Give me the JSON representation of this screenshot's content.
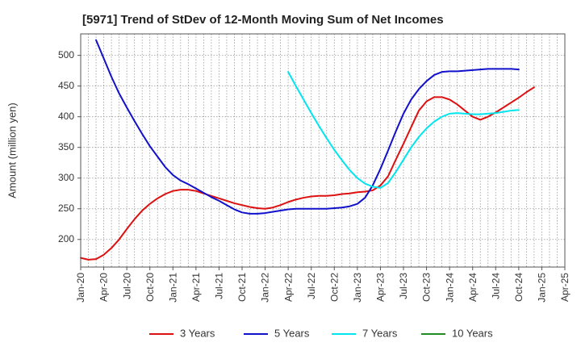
{
  "chart_data": {
    "type": "line",
    "title": "[5971]  Trend of StDev of 12-Month Moving Sum of Net Incomes",
    "xlabel": "",
    "ylabel": "Amount (million yen)",
    "ylim": [
      155,
      535
    ],
    "yticks": [
      200,
      250,
      300,
      350,
      400,
      450,
      500
    ],
    "xlim": [
      0,
      63
    ],
    "xticks": [
      {
        "m": 0,
        "label": "Jan-20"
      },
      {
        "m": 3,
        "label": "Apr-20"
      },
      {
        "m": 6,
        "label": "Jul-20"
      },
      {
        "m": 9,
        "label": "Oct-20"
      },
      {
        "m": 12,
        "label": "Jan-21"
      },
      {
        "m": 15,
        "label": "Apr-21"
      },
      {
        "m": 18,
        "label": "Jul-21"
      },
      {
        "m": 21,
        "label": "Oct-21"
      },
      {
        "m": 24,
        "label": "Jan-22"
      },
      {
        "m": 27,
        "label": "Apr-22"
      },
      {
        "m": 30,
        "label": "Jul-22"
      },
      {
        "m": 33,
        "label": "Oct-22"
      },
      {
        "m": 36,
        "label": "Jan-23"
      },
      {
        "m": 39,
        "label": "Apr-23"
      },
      {
        "m": 42,
        "label": "Jul-23"
      },
      {
        "m": 45,
        "label": "Oct-23"
      },
      {
        "m": 48,
        "label": "Jan-24"
      },
      {
        "m": 51,
        "label": "Apr-24"
      },
      {
        "m": 54,
        "label": "Jul-24"
      },
      {
        "m": 57,
        "label": "Oct-24"
      },
      {
        "m": 60,
        "label": "Jan-25"
      },
      {
        "m": 63,
        "label": "Apr-25"
      }
    ],
    "grid": true,
    "legend_position": "bottom",
    "series": [
      {
        "name": "3 Years",
        "color": "#dd1111",
        "points": [
          [
            0,
            170
          ],
          [
            1,
            167
          ],
          [
            2,
            168
          ],
          [
            3,
            175
          ],
          [
            4,
            186
          ],
          [
            5,
            200
          ],
          [
            6,
            217
          ],
          [
            7,
            233
          ],
          [
            8,
            247
          ],
          [
            9,
            258
          ],
          [
            10,
            267
          ],
          [
            11,
            274
          ],
          [
            12,
            279
          ],
          [
            13,
            281
          ],
          [
            14,
            281
          ],
          [
            15,
            279
          ],
          [
            16,
            275
          ],
          [
            17,
            271
          ],
          [
            18,
            267
          ],
          [
            19,
            263
          ],
          [
            20,
            259
          ],
          [
            21,
            256
          ],
          [
            22,
            253
          ],
          [
            23,
            251
          ],
          [
            24,
            250
          ],
          [
            25,
            252
          ],
          [
            26,
            256
          ],
          [
            27,
            261
          ],
          [
            28,
            265
          ],
          [
            29,
            268
          ],
          [
            30,
            270
          ],
          [
            31,
            271
          ],
          [
            32,
            271
          ],
          [
            33,
            272
          ],
          [
            34,
            274
          ],
          [
            35,
            275
          ],
          [
            36,
            277
          ],
          [
            37,
            278
          ],
          [
            38,
            280
          ],
          [
            39,
            288
          ],
          [
            40,
            303
          ],
          [
            41,
            330
          ],
          [
            42,
            356
          ],
          [
            43,
            383
          ],
          [
            44,
            410
          ],
          [
            45,
            425
          ],
          [
            46,
            432
          ],
          [
            47,
            432
          ],
          [
            48,
            428
          ],
          [
            49,
            420
          ],
          [
            50,
            410
          ],
          [
            51,
            400
          ],
          [
            52,
            395
          ],
          [
            53,
            400
          ],
          [
            54,
            407
          ],
          [
            55,
            415
          ],
          [
            56,
            423
          ],
          [
            57,
            431
          ],
          [
            58,
            440
          ],
          [
            59,
            448
          ]
        ]
      },
      {
        "name": "5 Years",
        "color": "#1111cc",
        "points": [
          [
            2,
            525
          ],
          [
            3,
            495
          ],
          [
            4,
            465
          ],
          [
            5,
            438
          ],
          [
            6,
            415
          ],
          [
            7,
            393
          ],
          [
            8,
            372
          ],
          [
            9,
            352
          ],
          [
            10,
            335
          ],
          [
            11,
            318
          ],
          [
            12,
            305
          ],
          [
            13,
            296
          ],
          [
            14,
            290
          ],
          [
            15,
            283
          ],
          [
            16,
            276
          ],
          [
            17,
            269
          ],
          [
            18,
            263
          ],
          [
            19,
            256
          ],
          [
            20,
            249
          ],
          [
            21,
            244
          ],
          [
            22,
            242
          ],
          [
            23,
            242
          ],
          [
            24,
            243
          ],
          [
            25,
            245
          ],
          [
            26,
            247
          ],
          [
            27,
            249
          ],
          [
            28,
            250
          ],
          [
            29,
            250
          ],
          [
            30,
            250
          ],
          [
            31,
            250
          ],
          [
            32,
            250
          ],
          [
            33,
            251
          ],
          [
            34,
            252
          ],
          [
            35,
            254
          ],
          [
            36,
            258
          ],
          [
            37,
            268
          ],
          [
            38,
            288
          ],
          [
            39,
            315
          ],
          [
            40,
            345
          ],
          [
            41,
            376
          ],
          [
            42,
            405
          ],
          [
            43,
            428
          ],
          [
            44,
            445
          ],
          [
            45,
            458
          ],
          [
            46,
            468
          ],
          [
            47,
            473
          ],
          [
            48,
            474
          ],
          [
            49,
            474
          ],
          [
            50,
            475
          ],
          [
            51,
            476
          ],
          [
            52,
            477
          ],
          [
            53,
            478
          ],
          [
            54,
            478
          ],
          [
            55,
            478
          ],
          [
            56,
            478
          ],
          [
            57,
            477
          ]
        ]
      },
      {
        "name": "7 Years",
        "color": "#00e5ee",
        "points": [
          [
            27,
            473
          ],
          [
            28,
            450
          ],
          [
            29,
            428
          ],
          [
            30,
            406
          ],
          [
            31,
            385
          ],
          [
            32,
            365
          ],
          [
            33,
            346
          ],
          [
            34,
            329
          ],
          [
            35,
            313
          ],
          [
            36,
            300
          ],
          [
            37,
            291
          ],
          [
            38,
            286
          ],
          [
            39,
            284
          ],
          [
            40,
            292
          ],
          [
            41,
            310
          ],
          [
            42,
            330
          ],
          [
            43,
            350
          ],
          [
            44,
            367
          ],
          [
            45,
            381
          ],
          [
            46,
            392
          ],
          [
            47,
            400
          ],
          [
            48,
            405
          ],
          [
            49,
            406
          ],
          [
            50,
            405
          ],
          [
            51,
            404
          ],
          [
            52,
            404
          ],
          [
            53,
            405
          ],
          [
            54,
            406
          ],
          [
            55,
            408
          ],
          [
            56,
            410
          ],
          [
            57,
            411
          ]
        ]
      },
      {
        "name": "10 Years",
        "color": "#228b22",
        "points": []
      }
    ]
  }
}
